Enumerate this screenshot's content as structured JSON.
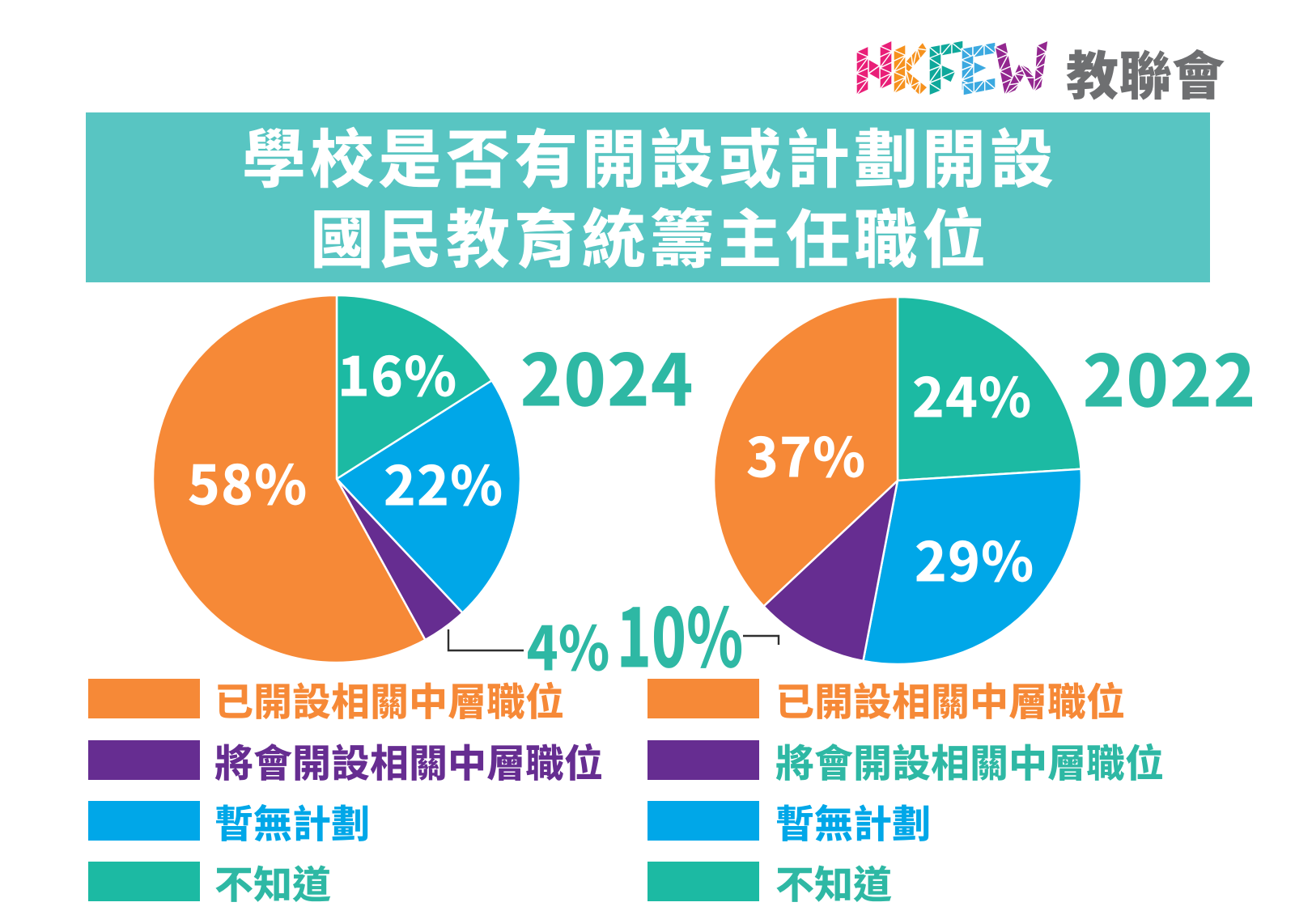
{
  "page": {
    "background": "#ffffff"
  },
  "logo": {
    "letters": "HKFEW",
    "cjk": "教聯會",
    "text_color": "#6E6F71",
    "letter_colors": {
      "H": "#E91F78",
      "K": "#F6921E",
      "F": "#0FA89B",
      "E": "#3BA9E0",
      "W": "#93278F"
    }
  },
  "banner": {
    "line1": "學校是否有開設或計劃開設",
    "line2": "國民教育統籌主任職位",
    "background": "#58C5C2",
    "text_color": "#ffffff"
  },
  "colors": {
    "orange": "#F68937",
    "purple": "#662D91",
    "blue": "#00A7E8",
    "teal": "#1CBAA3",
    "teal_text": "#2EB8A4",
    "leader_line": "#2F2F2F"
  },
  "chart_data": [
    {
      "type": "pie",
      "title": "2024",
      "unit": "%",
      "start": "top",
      "direction": "clockwise",
      "legend_position": "bottom",
      "slices": [
        {
          "label": "不知道",
          "value": 16,
          "display": "16%",
          "color": "#1CBAA3"
        },
        {
          "label": "暫無計劃",
          "value": 22,
          "display": "22%",
          "color": "#00A7E8"
        },
        {
          "label": "將會開設相關中層職位",
          "value": 4,
          "display": "4%",
          "color": "#662D91"
        },
        {
          "label": "已開設相關中層職位",
          "value": 58,
          "display": "58%",
          "color": "#F68937"
        }
      ]
    },
    {
      "type": "pie",
      "title": "2022",
      "unit": "%",
      "start": "top",
      "direction": "clockwise",
      "legend_position": "bottom",
      "slices": [
        {
          "label": "不知道",
          "value": 24,
          "display": "24%",
          "color": "#1CBAA3"
        },
        {
          "label": "暫無計劃",
          "value": 29,
          "display": "29%",
          "color": "#00A7E8"
        },
        {
          "label": "將會開設相關中層職位",
          "value": 10,
          "display": "10%",
          "color": "#662D91"
        },
        {
          "label": "已開設相關中層職位",
          "value": 37,
          "display": "37%",
          "color": "#F68937"
        }
      ]
    }
  ],
  "legends": {
    "left": {
      "items": [
        {
          "label": "已開設相關中層職位",
          "swatch_color": "#F68937",
          "text_color": "#F68937"
        },
        {
          "label": "將會開設相關中層職位",
          "swatch_color": "#662D91",
          "text_color": "#662D91"
        },
        {
          "label": "暫無計劃",
          "swatch_color": "#00A7E8",
          "text_color": "#00A7E8"
        },
        {
          "label": "不知道",
          "swatch_color": "#1CBAA3",
          "text_color": "#2EB8A4"
        }
      ]
    },
    "right": {
      "items": [
        {
          "label": "已開設相關中層職位",
          "swatch_color": "#F68937",
          "text_color": "#F68937"
        },
        {
          "label": "將會開設相關中層職位",
          "swatch_color": "#662D91",
          "text_color": "#2EB8A4"
        },
        {
          "label": "暫無計劃",
          "swatch_color": "#00A7E8",
          "text_color": "#00A7E8"
        },
        {
          "label": "不知道",
          "swatch_color": "#1CBAA3",
          "text_color": "#2EB8A4"
        }
      ]
    }
  }
}
